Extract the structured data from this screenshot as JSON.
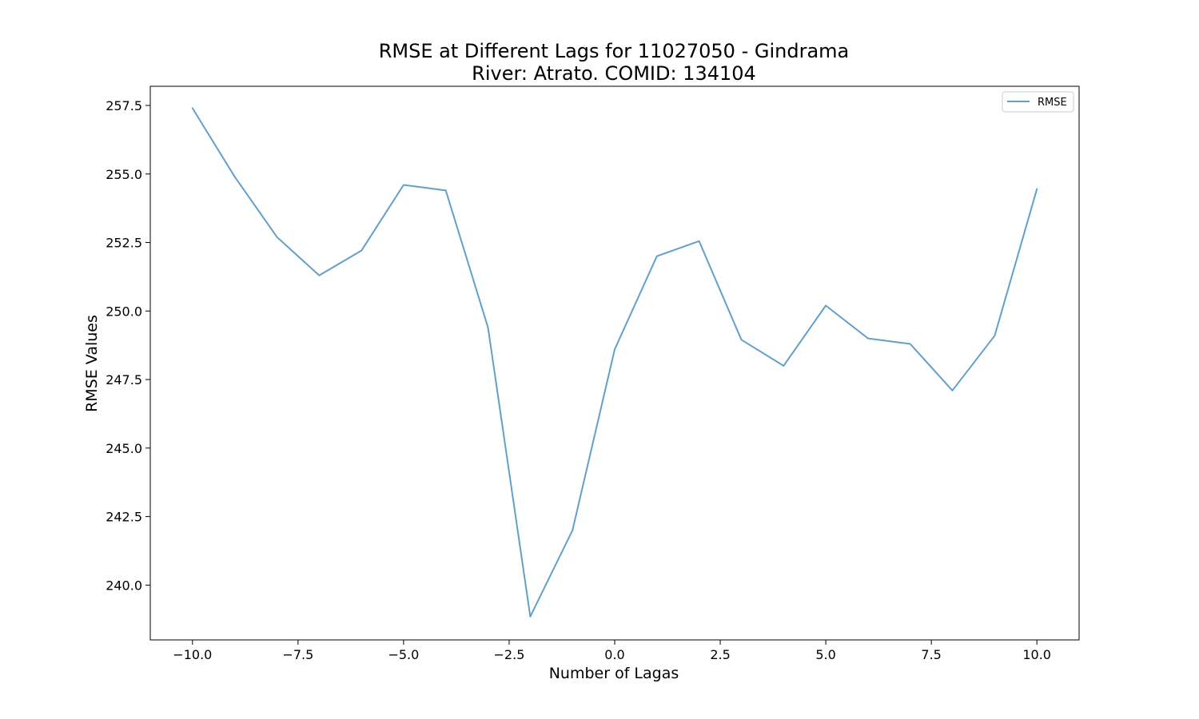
{
  "chart_data": {
    "type": "line",
    "title_line1": "RMSE at Different Lags for 11027050 - Gindrama",
    "title_line2": "River: Atrato. COMID: 134104",
    "xlabel": "Number of Lagas",
    "ylabel": "RMSE Values",
    "xlim": [
      -11,
      11
    ],
    "ylim": [
      238.0,
      258.2
    ],
    "xticks": [
      -10.0,
      -7.5,
      -5.0,
      -2.5,
      0.0,
      2.5,
      5.0,
      7.5,
      10.0
    ],
    "xtick_labels": [
      "−10.0",
      "−7.5",
      "−5.0",
      "−2.5",
      "0.0",
      "2.5",
      "5.0",
      "7.5",
      "10.0"
    ],
    "yticks": [
      240.0,
      242.5,
      245.0,
      247.5,
      250.0,
      252.5,
      255.0,
      257.5
    ],
    "ytick_labels": [
      "240.0",
      "242.5",
      "245.0",
      "247.5",
      "250.0",
      "252.5",
      "255.0",
      "257.5"
    ],
    "grid": false,
    "legend_position": "top-right",
    "series": [
      {
        "name": "RMSE",
        "color": "#1f77b4",
        "x": [
          -10,
          -9,
          -8,
          -7,
          -6,
          -5,
          -4,
          -3,
          -2,
          -1,
          0,
          1,
          2,
          3,
          4,
          5,
          6,
          7,
          8,
          9,
          10
        ],
        "y": [
          257.4,
          254.9,
          252.7,
          251.3,
          252.2,
          254.6,
          254.4,
          249.4,
          238.85,
          242.0,
          248.6,
          252.0,
          252.55,
          248.95,
          248.0,
          250.2,
          249.0,
          248.8,
          247.1,
          249.1,
          254.45
        ]
      }
    ]
  }
}
